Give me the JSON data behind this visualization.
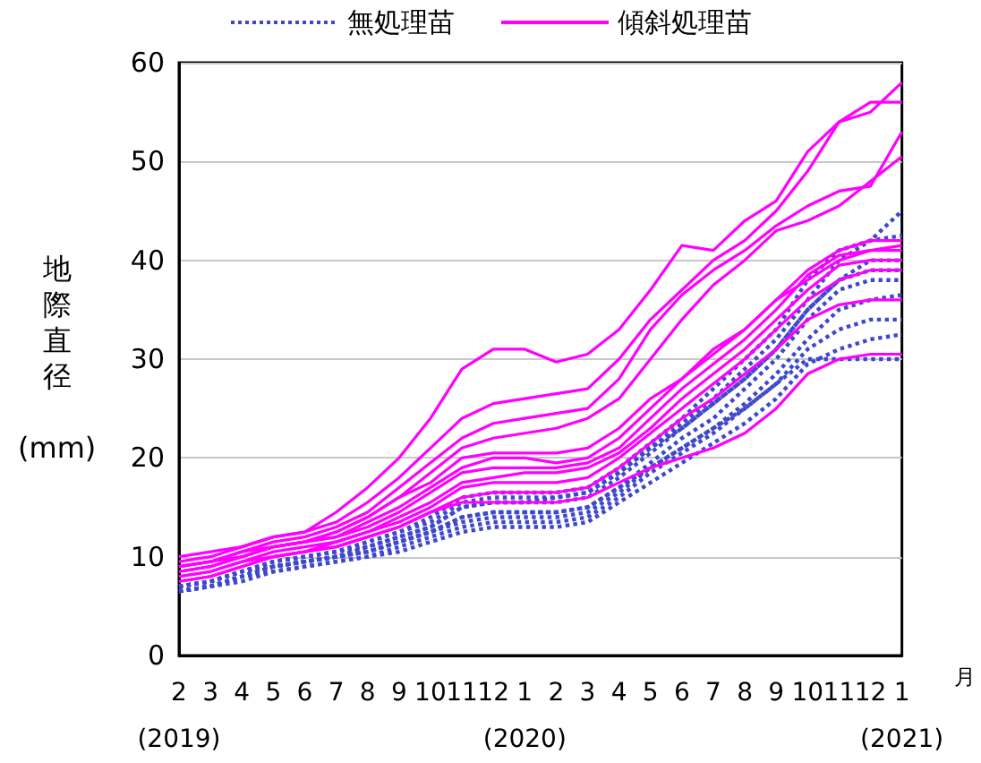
{
  "chart_data": {
    "type": "line",
    "ylabel": "地際直径 (mm)",
    "xlabel": "月",
    "categories": [
      "2\n(2019)",
      "3",
      "4",
      "5",
      "6",
      "7",
      "8",
      "9",
      "10",
      "11",
      "12",
      "1\n(2020)",
      "2",
      "3",
      "4",
      "5",
      "6",
      "7",
      "8",
      "9",
      "10",
      "11",
      "12",
      "1\n(2021)"
    ],
    "ylim": [
      0,
      60
    ],
    "yticks": [
      0,
      10,
      20,
      30,
      40,
      50,
      60
    ],
    "grid": "y",
    "legend": "top",
    "marker": "none",
    "series": [
      {
        "name": "無処理苗",
        "color": "#3f48cc",
        "line_style": "dotted",
        "values": [
          7,
          7.5,
          8.5,
          9.5,
          10,
          10.5,
          11.5,
          12.5,
          14,
          16,
          16.5,
          16.5,
          16.5,
          17,
          19,
          21.5,
          24,
          27,
          30,
          33,
          38,
          41,
          42,
          45
        ]
      },
      {
        "color": "#3f48cc",
        "line_style": "dotted",
        "values": [
          7,
          7.5,
          8.5,
          9.5,
          10,
          10.5,
          11.5,
          12.5,
          13.5,
          15.5,
          16,
          16,
          16,
          16.5,
          18.5,
          21,
          23.5,
          26,
          29,
          32,
          36,
          40,
          42,
          42.5
        ]
      },
      {
        "color": "#3f48cc",
        "line_style": "dotted",
        "values": [
          6.5,
          7,
          8,
          9,
          9.5,
          10,
          11,
          12,
          13,
          15,
          15.5,
          15.5,
          15.5,
          16,
          18,
          20.5,
          23,
          25.5,
          28,
          31,
          35,
          38,
          40,
          40
        ]
      },
      {
        "color": "#3f48cc",
        "line_style": "dotted",
        "values": [
          6.5,
          7,
          8,
          9,
          9.5,
          10,
          10.5,
          11.5,
          12.5,
          14,
          14.5,
          14.5,
          14.5,
          15,
          17,
          19.5,
          22,
          24,
          27,
          30,
          34,
          37,
          38,
          38
        ]
      },
      {
        "color": "#3f48cc",
        "line_style": "dotted",
        "values": [
          6.5,
          7,
          8,
          9,
          9.5,
          10,
          10.5,
          11.5,
          12.5,
          13.5,
          14,
          14,
          14,
          14.5,
          16.5,
          19,
          21,
          23,
          25.5,
          28.5,
          32,
          35,
          36,
          36.5
        ]
      },
      {
        "color": "#3f48cc",
        "line_style": "dotted",
        "values": [
          6.5,
          7,
          8,
          8.5,
          9,
          9.5,
          10,
          11,
          12,
          13,
          13.5,
          13.5,
          13.5,
          14,
          16,
          18.5,
          20.5,
          22.5,
          25,
          27.5,
          31,
          33,
          34,
          34
        ]
      },
      {
        "color": "#3f48cc",
        "line_style": "dotted",
        "values": [
          6.5,
          7,
          7.5,
          8.5,
          9,
          9.5,
          10,
          10.5,
          11.5,
          12.5,
          13,
          13,
          13,
          13.5,
          15.5,
          17.5,
          19.5,
          21.5,
          23.5,
          26,
          29.5,
          31,
          32,
          32.5
        ]
      },
      {
        "color": "#3f48cc",
        "line_style": "dotted",
        "values": [
          7,
          7.5,
          8.5,
          9,
          9.5,
          10,
          10.5,
          11.5,
          12.5,
          14,
          14.5,
          14.5,
          14.5,
          15,
          17,
          19,
          21,
          23,
          25,
          27.5,
          30,
          30,
          30,
          30
        ]
      },
      {
        "color": "#3f48cc",
        "line_style": "dotted",
        "values": [
          7,
          7.5,
          8.5,
          9.5,
          10,
          10.5,
          11,
          12,
          13,
          15,
          15.5,
          15.5,
          16,
          16.5,
          18.5,
          21,
          23,
          25.5,
          28,
          31,
          35,
          38,
          39,
          39
        ]
      },
      {
        "name": "傾斜処理苗",
        "color": "#ff00ff",
        "line_style": "solid",
        "values": [
          10,
          10.5,
          11,
          12,
          12.5,
          14.5,
          17,
          20,
          24,
          29,
          31,
          31,
          29.7,
          30.5,
          33,
          37,
          41.5,
          41,
          44,
          46,
          51,
          54,
          55,
          58
        ]
      },
      {
        "color": "#ff00ff",
        "line_style": "solid",
        "values": [
          9.5,
          10,
          11,
          12,
          12.5,
          13.5,
          15.5,
          18,
          21,
          24,
          25.5,
          26,
          26.5,
          27,
          30,
          34,
          37,
          40,
          42,
          45,
          49,
          54,
          56,
          56
        ]
      },
      {
        "color": "#ff00ff",
        "line_style": "solid",
        "values": [
          9,
          9.5,
          10.5,
          11.5,
          12,
          13,
          14.5,
          17,
          19.5,
          22,
          23.5,
          24,
          24.5,
          25,
          28,
          33,
          36.5,
          39,
          41,
          43.5,
          45.5,
          47,
          47.5,
          53
        ]
      },
      {
        "color": "#ff00ff",
        "line_style": "solid",
        "values": [
          9,
          9.5,
          10.5,
          11,
          11.5,
          12.5,
          14,
          16,
          18.5,
          21,
          22,
          22.5,
          23,
          24,
          26,
          30,
          34,
          37.5,
          40,
          43,
          44,
          45.5,
          48,
          50.5
        ]
      },
      {
        "color": "#ff00ff",
        "line_style": "solid",
        "values": [
          8.5,
          9,
          10,
          11,
          11.5,
          12,
          13.5,
          15,
          17,
          19,
          20,
          20,
          19.5,
          20,
          22,
          25,
          28,
          30.5,
          33,
          36,
          38,
          40,
          41,
          41.5
        ]
      },
      {
        "color": "#ff00ff",
        "line_style": "solid",
        "values": [
          8.5,
          9,
          10,
          11,
          11.5,
          12,
          13,
          14.5,
          16.5,
          18.5,
          19,
          19,
          19,
          19.5,
          21,
          24,
          27,
          29.5,
          32,
          35,
          38.5,
          40.5,
          41,
          41
        ]
      },
      {
        "color": "#ff00ff",
        "line_style": "solid",
        "values": [
          8,
          8.5,
          9.5,
          10.5,
          11,
          11.5,
          12.5,
          14,
          15.5,
          17.5,
          18,
          18.5,
          18.5,
          19,
          20.5,
          23,
          26,
          28.5,
          31,
          34,
          37,
          39.5,
          40,
          40
        ]
      },
      {
        "color": "#ff00ff",
        "line_style": "solid",
        "values": [
          8,
          8.5,
          9.5,
          10,
          10.5,
          11.5,
          12.5,
          13.5,
          15,
          17,
          17.5,
          17.5,
          17.5,
          18,
          20,
          22.5,
          25,
          27.5,
          30,
          33,
          36,
          38,
          39,
          39
        ]
      },
      {
        "color": "#ff00ff",
        "line_style": "solid",
        "values": [
          7.5,
          8,
          9,
          10,
          10.5,
          11,
          12,
          13,
          14.5,
          16,
          16.5,
          16.5,
          16.5,
          17,
          19,
          21.5,
          24,
          26,
          28.5,
          31,
          34,
          35.5,
          36,
          36
        ]
      },
      {
        "color": "#ff00ff",
        "line_style": "solid",
        "values": [
          7.5,
          8,
          9,
          10,
          10.5,
          11,
          12,
          13,
          14.5,
          15.5,
          15.5,
          15.5,
          15.5,
          16,
          17.5,
          19,
          20,
          21,
          22.5,
          25,
          28.5,
          30,
          30.5,
          30.5
        ]
      },
      {
        "color": "#ff00ff",
        "line_style": "solid",
        "values": [
          9,
          9.5,
          10,
          11,
          11.5,
          12.5,
          14,
          16,
          17.5,
          20,
          20.5,
          20.5,
          20.5,
          21,
          23,
          26,
          28,
          31,
          33,
          36,
          39,
          41,
          42,
          42
        ]
      }
    ]
  }
}
